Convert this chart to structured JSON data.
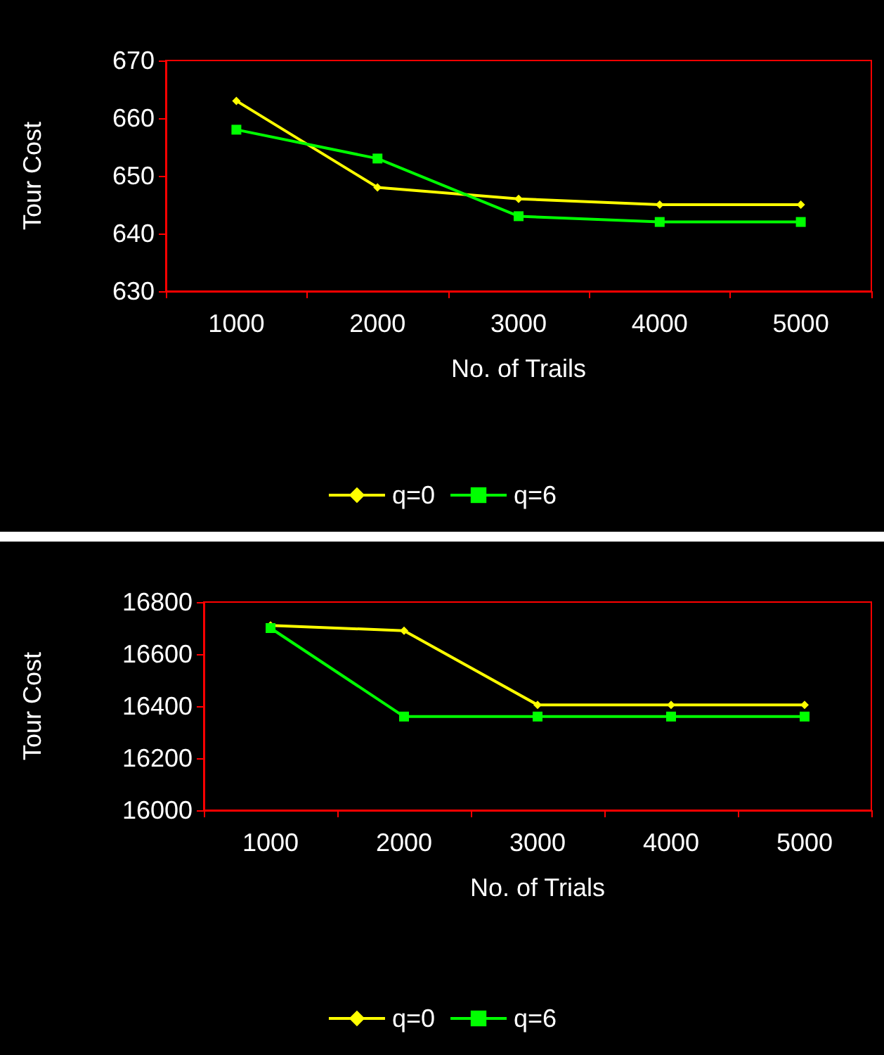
{
  "chart_data": [
    {
      "type": "line",
      "xlabel": "No. of Trails",
      "ylabel": "Tour Cost",
      "categories": [
        "1000",
        "2000",
        "3000",
        "4000",
        "5000"
      ],
      "ylim": [
        630,
        670
      ],
      "yticks": [
        630,
        640,
        650,
        660,
        670
      ],
      "grid": false,
      "legend": "bottom",
      "series": [
        {
          "name": "q=0",
          "color": "#ffff00",
          "marker": "diamond",
          "values": [
            663,
            648,
            646,
            645,
            645
          ]
        },
        {
          "name": "q=6",
          "color": "#00ff00",
          "marker": "square",
          "values": [
            658,
            653,
            643,
            642,
            642
          ]
        }
      ]
    },
    {
      "type": "line",
      "xlabel": "No. of Trials",
      "ylabel": "Tour Cost",
      "categories": [
        "1000",
        "2000",
        "3000",
        "4000",
        "5000"
      ],
      "ylim": [
        16000,
        16800
      ],
      "yticks": [
        16000,
        16200,
        16400,
        16600,
        16800
      ],
      "grid": false,
      "legend": "bottom",
      "series": [
        {
          "name": "q=0",
          "color": "#ffff00",
          "marker": "diamond",
          "values": [
            16710,
            16690,
            16405,
            16405,
            16405
          ]
        },
        {
          "name": "q=6",
          "color": "#00ff00",
          "marker": "square",
          "values": [
            16700,
            16360,
            16360,
            16360,
            16360
          ]
        }
      ]
    }
  ]
}
